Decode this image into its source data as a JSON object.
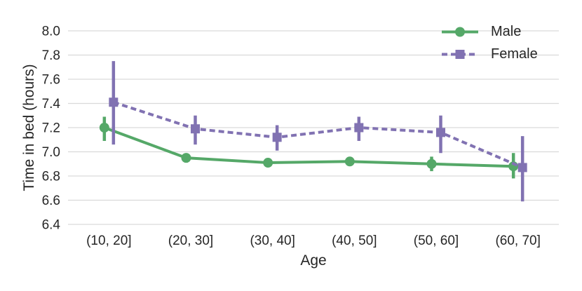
{
  "chart_data": {
    "type": "line",
    "title": "",
    "xlabel": "Age",
    "ylabel": "Time in bed (hours)",
    "categories": [
      "(10, 20]",
      "(20, 30]",
      "(30, 40]",
      "(40, 50]",
      "(50, 60]",
      "(60, 70]"
    ],
    "y_tick_values": [
      6.4,
      6.6,
      6.8,
      7.0,
      7.2,
      7.4,
      7.6,
      7.8,
      8.0
    ],
    "y_tick_labels": [
      "6.4",
      "6.6",
      "6.8",
      "7.0",
      "7.2",
      "7.4",
      "7.6",
      "7.8",
      "8.0"
    ],
    "ylim": [
      6.35,
      8.05
    ],
    "grid": "horizontal",
    "legend_position": "upper right",
    "legend_frame": false,
    "series": [
      {
        "name": "Male",
        "color": "#55a868",
        "marker": "circle",
        "line_style": "solid",
        "values": [
          7.2,
          6.95,
          6.91,
          6.92,
          6.9,
          6.88
        ],
        "ci_low": [
          7.09,
          6.91,
          6.88,
          6.89,
          6.84,
          6.78
        ],
        "ci_high": [
          7.29,
          6.98,
          6.94,
          6.95,
          6.96,
          6.99
        ]
      },
      {
        "name": "Female",
        "color": "#8172b2",
        "marker": "square",
        "line_style": "dashed",
        "values": [
          7.41,
          7.19,
          7.12,
          7.2,
          7.16,
          6.87
        ],
        "ci_low": [
          7.06,
          7.06,
          7.01,
          7.09,
          6.99,
          6.59
        ],
        "ci_high": [
          7.75,
          7.3,
          7.22,
          7.29,
          7.3,
          7.13
        ]
      }
    ]
  },
  "colors": {
    "grid": "#d9d9d9",
    "text": "#262626",
    "background": "#ffffff",
    "male": "#55a868",
    "female": "#8172b2"
  }
}
